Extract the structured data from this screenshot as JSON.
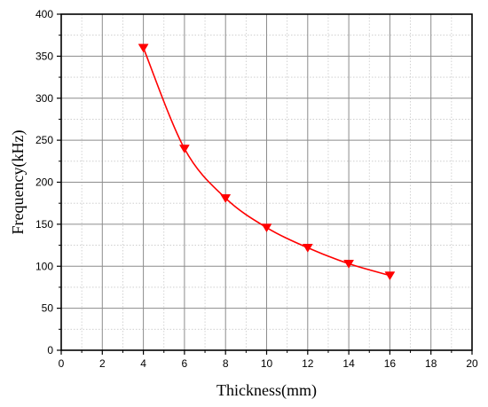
{
  "chart_data": {
    "type": "line",
    "xlabel": "Thickness(mm)",
    "ylabel": "Frequency(kHz)",
    "xlim": [
      0,
      20
    ],
    "ylim": [
      0,
      400
    ],
    "x_ticks": [
      "0",
      "2",
      "4",
      "6",
      "8",
      "10",
      "12",
      "14",
      "16",
      "18",
      "20"
    ],
    "y_ticks": [
      "0",
      "50",
      "100",
      "150",
      "200",
      "250",
      "300",
      "350",
      "400"
    ],
    "grid": true,
    "series": [
      {
        "x": [
          4,
          6,
          8,
          10,
          12,
          14,
          16
        ],
        "values": [
          360,
          240,
          181,
          146,
          122,
          103,
          89
        ],
        "color": "#ff0000",
        "marker": "triangle-down"
      }
    ]
  }
}
